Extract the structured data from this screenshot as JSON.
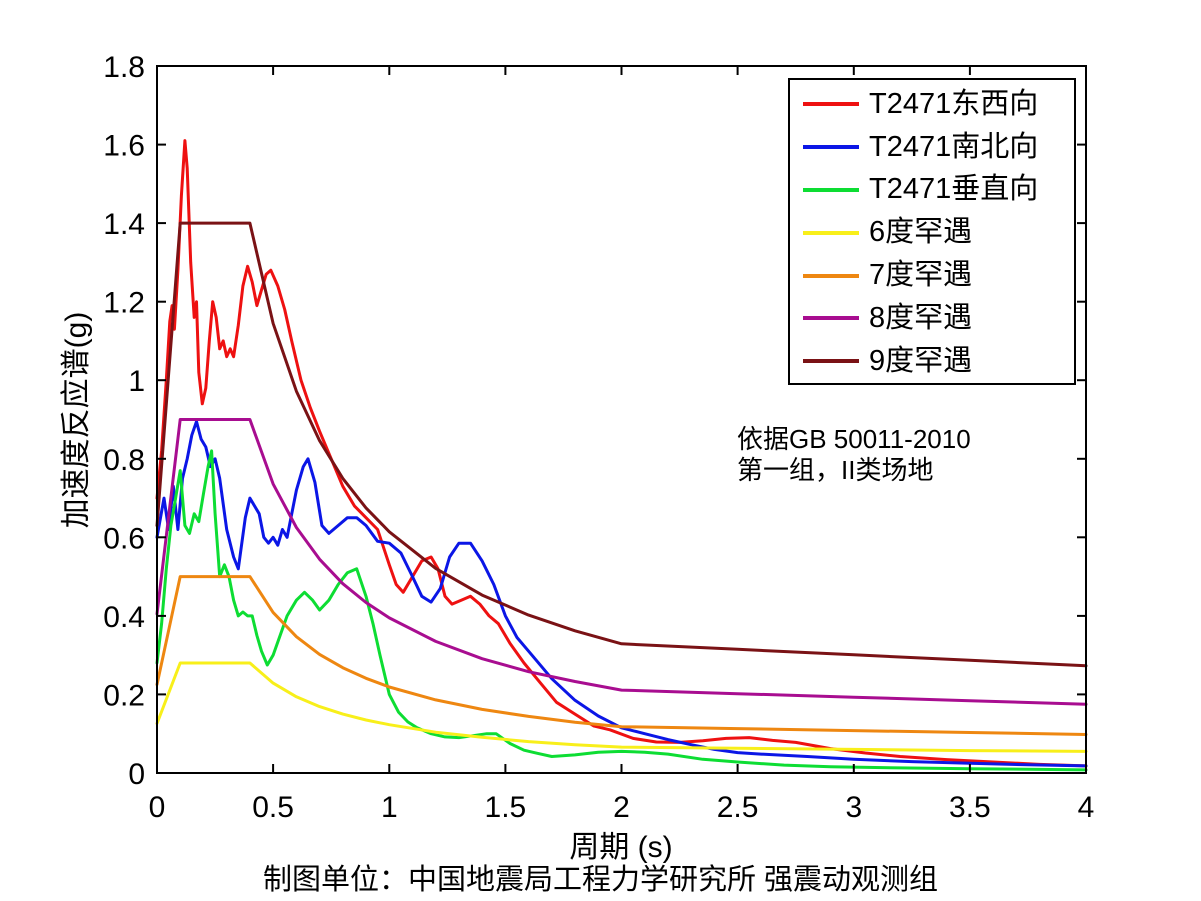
{
  "axes": {
    "xlabel": "周期 (s)",
    "ylabel": "加速度反应谱(g)"
  },
  "annotation": {
    "line1": "依据GB 50011-2010",
    "line2": "第一组，II类场地"
  },
  "caption": "制图单位：中国地震局工程力学研究所 强震动观测组",
  "chart_data": {
    "type": "line",
    "title": "",
    "xlabel": "周期 (s)",
    "ylabel": "加速度反应谱(g)",
    "xlim": [
      0,
      4
    ],
    "ylim": [
      0,
      1.8
    ],
    "grid": false,
    "legend_position": "top-right",
    "x_ticks": [
      0,
      0.5,
      1,
      1.5,
      2,
      2.5,
      3,
      3.5,
      4
    ],
    "x_tick_labels": [
      "0",
      "0.5",
      "1",
      "1.5",
      "2",
      "2.5",
      "3",
      "3.5",
      "4"
    ],
    "y_ticks": [
      0,
      0.2,
      0.4,
      0.6,
      0.8,
      1,
      1.2,
      1.4,
      1.6,
      1.8
    ],
    "y_tick_labels": [
      "0",
      "0.2",
      "0.4",
      "0.6",
      "0.8",
      "1",
      "1.2",
      "1.4",
      "1.6",
      "1.8"
    ],
    "axis_color": "#000000",
    "background_color": "#ffffff",
    "series": [
      {
        "name": "T2471东西向",
        "color": "#ee1111",
        "t": [
          0,
          0.02,
          0.04,
          0.055,
          0.065,
          0.075,
          0.09,
          0.105,
          0.12,
          0.13,
          0.145,
          0.16,
          0.17,
          0.18,
          0.195,
          0.21,
          0.225,
          0.24,
          0.255,
          0.27,
          0.285,
          0.3,
          0.315,
          0.33,
          0.35,
          0.37,
          0.39,
          0.41,
          0.43,
          0.45,
          0.47,
          0.49,
          0.52,
          0.55,
          0.58,
          0.62,
          0.66,
          0.7,
          0.75,
          0.8,
          0.85,
          0.9,
          0.95,
          1.0,
          1.03,
          1.06,
          1.1,
          1.14,
          1.18,
          1.21,
          1.24,
          1.27,
          1.31,
          1.35,
          1.39,
          1.43,
          1.47,
          1.52,
          1.58,
          1.65,
          1.72,
          1.8,
          1.88,
          1.95,
          2.05,
          2.15,
          2.25,
          2.35,
          2.45,
          2.55,
          2.65,
          2.75,
          2.9,
          3.05,
          3.2,
          3.4,
          3.6,
          3.8,
          4.0
        ],
        "v": [
          0.7,
          0.82,
          1.0,
          1.15,
          1.19,
          1.13,
          1.28,
          1.47,
          1.61,
          1.54,
          1.3,
          1.16,
          1.2,
          1.02,
          0.94,
          0.98,
          1.1,
          1.2,
          1.16,
          1.08,
          1.1,
          1.06,
          1.08,
          1.06,
          1.14,
          1.24,
          1.29,
          1.25,
          1.19,
          1.23,
          1.27,
          1.28,
          1.24,
          1.18,
          1.1,
          1.0,
          0.93,
          0.87,
          0.8,
          0.73,
          0.68,
          0.65,
          0.62,
          0.53,
          0.48,
          0.46,
          0.5,
          0.54,
          0.55,
          0.52,
          0.45,
          0.43,
          0.44,
          0.45,
          0.43,
          0.4,
          0.38,
          0.33,
          0.28,
          0.23,
          0.18,
          0.15,
          0.12,
          0.11,
          0.088,
          0.079,
          0.078,
          0.082,
          0.088,
          0.09,
          0.083,
          0.078,
          0.062,
          0.051,
          0.042,
          0.034,
          0.028,
          0.022,
          0.018
        ]
      },
      {
        "name": "T2471南北向",
        "color": "#0b16e6",
        "t": [
          0,
          0.03,
          0.05,
          0.07,
          0.09,
          0.11,
          0.13,
          0.15,
          0.17,
          0.19,
          0.21,
          0.23,
          0.25,
          0.27,
          0.3,
          0.33,
          0.35,
          0.38,
          0.4,
          0.42,
          0.44,
          0.46,
          0.48,
          0.5,
          0.52,
          0.54,
          0.56,
          0.6,
          0.63,
          0.65,
          0.68,
          0.71,
          0.74,
          0.78,
          0.82,
          0.86,
          0.9,
          0.95,
          1.0,
          1.05,
          1.1,
          1.14,
          1.18,
          1.22,
          1.26,
          1.3,
          1.35,
          1.4,
          1.45,
          1.5,
          1.55,
          1.6,
          1.7,
          1.8,
          1.9,
          2.0,
          2.1,
          2.2,
          2.3,
          2.4,
          2.5,
          2.6,
          2.8,
          3.0,
          3.25,
          3.5,
          3.75,
          4.0
        ],
        "v": [
          0.6,
          0.7,
          0.62,
          0.73,
          0.62,
          0.75,
          0.8,
          0.86,
          0.895,
          0.85,
          0.83,
          0.78,
          0.8,
          0.75,
          0.62,
          0.55,
          0.52,
          0.65,
          0.7,
          0.68,
          0.66,
          0.6,
          0.585,
          0.6,
          0.58,
          0.62,
          0.6,
          0.72,
          0.78,
          0.8,
          0.74,
          0.63,
          0.61,
          0.63,
          0.65,
          0.65,
          0.63,
          0.59,
          0.585,
          0.56,
          0.5,
          0.45,
          0.435,
          0.47,
          0.55,
          0.585,
          0.585,
          0.54,
          0.48,
          0.4,
          0.345,
          0.31,
          0.24,
          0.185,
          0.145,
          0.115,
          0.1,
          0.085,
          0.072,
          0.06,
          0.052,
          0.048,
          0.042,
          0.035,
          0.029,
          0.025,
          0.021,
          0.018
        ]
      },
      {
        "name": "T2471垂直向",
        "color": "#0ddd33",
        "t": [
          0,
          0.02,
          0.04,
          0.06,
          0.08,
          0.1,
          0.12,
          0.14,
          0.16,
          0.18,
          0.2,
          0.22,
          0.235,
          0.25,
          0.27,
          0.29,
          0.31,
          0.33,
          0.35,
          0.37,
          0.39,
          0.41,
          0.43,
          0.45,
          0.475,
          0.5,
          0.53,
          0.56,
          0.6,
          0.635,
          0.67,
          0.7,
          0.74,
          0.78,
          0.82,
          0.86,
          0.9,
          0.93,
          0.96,
          1.0,
          1.04,
          1.08,
          1.12,
          1.18,
          1.24,
          1.3,
          1.36,
          1.42,
          1.46,
          1.52,
          1.58,
          1.64,
          1.7,
          1.8,
          1.9,
          2.0,
          2.1,
          2.2,
          2.35,
          2.5,
          2.7,
          2.9,
          3.2,
          3.5,
          4.0
        ],
        "v": [
          0.28,
          0.38,
          0.52,
          0.63,
          0.7,
          0.77,
          0.63,
          0.61,
          0.66,
          0.64,
          0.71,
          0.78,
          0.82,
          0.66,
          0.5,
          0.53,
          0.5,
          0.44,
          0.4,
          0.41,
          0.4,
          0.4,
          0.35,
          0.31,
          0.275,
          0.3,
          0.35,
          0.4,
          0.44,
          0.46,
          0.44,
          0.415,
          0.44,
          0.48,
          0.51,
          0.52,
          0.45,
          0.38,
          0.3,
          0.2,
          0.155,
          0.13,
          0.115,
          0.1,
          0.092,
          0.09,
          0.095,
          0.1,
          0.1,
          0.075,
          0.058,
          0.05,
          0.042,
          0.046,
          0.053,
          0.055,
          0.053,
          0.048,
          0.035,
          0.028,
          0.02,
          0.016,
          0.013,
          0.011,
          0.008
        ]
      },
      {
        "name": "6度罕遇",
        "color": "#f8ef1a",
        "t": [
          0,
          0.1,
          0.4,
          0.5,
          0.6,
          0.7,
          0.8,
          0.9,
          1.0,
          1.2,
          1.4,
          1.6,
          1.8,
          2.0,
          2.5,
          3.0,
          3.5,
          4.0
        ],
        "v": [
          0.126,
          0.28,
          0.28,
          0.229,
          0.194,
          0.169,
          0.15,
          0.135,
          0.123,
          0.104,
          0.091,
          0.08,
          0.072,
          0.066,
          0.063,
          0.06,
          0.057,
          0.055
        ]
      },
      {
        "name": "7度罕遇",
        "color": "#ee8711",
        "t": [
          0,
          0.1,
          0.4,
          0.5,
          0.6,
          0.7,
          0.8,
          0.9,
          1.0,
          1.2,
          1.4,
          1.6,
          1.8,
          2.0,
          2.5,
          3.0,
          3.5,
          4.0
        ],
        "v": [
          0.225,
          0.5,
          0.5,
          0.409,
          0.347,
          0.302,
          0.268,
          0.241,
          0.219,
          0.186,
          0.162,
          0.144,
          0.129,
          0.118,
          0.113,
          0.108,
          0.103,
          0.098
        ]
      },
      {
        "name": "8度罕遇",
        "color": "#a80d90",
        "t": [
          0,
          0.1,
          0.4,
          0.5,
          0.6,
          0.7,
          0.8,
          0.9,
          1.0,
          1.2,
          1.4,
          1.6,
          1.8,
          2.0,
          2.5,
          3.0,
          3.5,
          4.0
        ],
        "v": [
          0.405,
          0.9,
          0.9,
          0.736,
          0.625,
          0.544,
          0.482,
          0.434,
          0.395,
          0.335,
          0.291,
          0.258,
          0.233,
          0.211,
          0.202,
          0.193,
          0.184,
          0.175
        ]
      },
      {
        "name": "9度罕遇",
        "color": "#7a1215",
        "t": [
          0,
          0.1,
          0.4,
          0.5,
          0.6,
          0.7,
          0.8,
          0.9,
          1.0,
          1.2,
          1.4,
          1.6,
          1.8,
          2.0,
          2.5,
          3.0,
          3.5,
          4.0
        ],
        "v": [
          0.63,
          1.4,
          1.4,
          1.145,
          0.972,
          0.846,
          0.75,
          0.675,
          0.614,
          0.521,
          0.453,
          0.402,
          0.362,
          0.329,
          0.315,
          0.301,
          0.287,
          0.273
        ]
      }
    ]
  }
}
